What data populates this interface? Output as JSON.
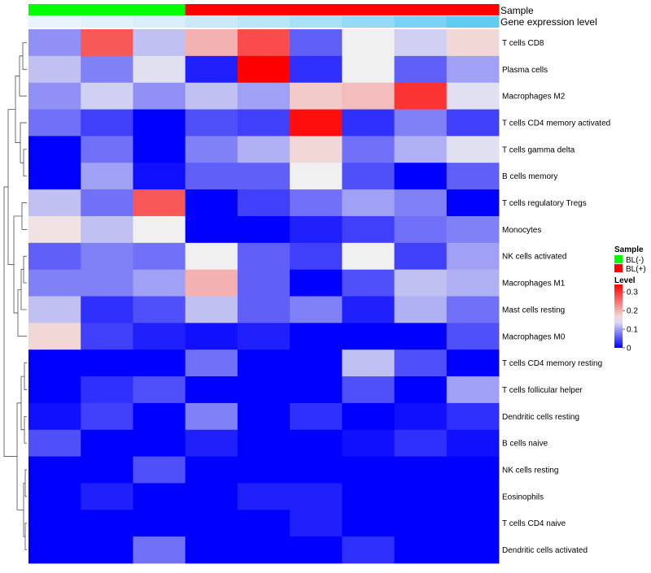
{
  "chart_data": {
    "type": "heatmap",
    "annotation_tracks": [
      "Sample",
      "Gene expression level"
    ],
    "samples": [
      "BL(-)",
      "BL(-)",
      "BL(-)",
      "BL(+)",
      "BL(+)",
      "BL(+)",
      "BL(+)",
      "BL(+)",
      "BL(+)"
    ],
    "gene_expression_level": [
      0.0,
      0.05,
      0.1,
      0.2,
      0.3,
      0.42,
      0.55,
      0.7,
      0.85
    ],
    "rows": [
      "T cells CD8",
      "Plasma cells",
      "Macrophages M2",
      "T cells CD4 memory activated",
      "T cells gamma delta",
      "B cells memory",
      "T cells regulatory  Tregs",
      "Monocytes",
      "NK cells activated",
      "Macrophages M1",
      "Mast cells resting",
      "Macrophages M0",
      "T cells CD4 memory resting",
      "T cells follicular helper",
      "Dendritic cells resting",
      "B cells naive",
      "NK cells resting",
      "Eosinophils",
      "T cells CD4 naive",
      "Dendritic cells activated"
    ],
    "values": [
      [
        0.09,
        0.27,
        0.12,
        0.2,
        0.28,
        0.06,
        0.15,
        0.13,
        0.17
      ],
      [
        0.12,
        0.08,
        0.14,
        0.02,
        0.34,
        0.03,
        0.15,
        0.06,
        0.1
      ],
      [
        0.09,
        0.13,
        0.09,
        0.12,
        0.1,
        0.18,
        0.19,
        0.3,
        0.14
      ],
      [
        0.07,
        0.04,
        0.0,
        0.05,
        0.04,
        0.33,
        0.03,
        0.08,
        0.04
      ],
      [
        0.0,
        0.07,
        0.0,
        0.08,
        0.11,
        0.17,
        0.07,
        0.11,
        0.14
      ],
      [
        0.0,
        0.1,
        0.01,
        0.06,
        0.06,
        0.15,
        0.05,
        0.0,
        0.06
      ],
      [
        0.12,
        0.07,
        0.27,
        0.0,
        0.04,
        0.07,
        0.1,
        0.08,
        0.0
      ],
      [
        0.16,
        0.12,
        0.15,
        0.0,
        0.0,
        0.02,
        0.04,
        0.07,
        0.08
      ],
      [
        0.06,
        0.08,
        0.07,
        0.15,
        0.06,
        0.04,
        0.15,
        0.04,
        0.1
      ],
      [
        0.08,
        0.08,
        0.1,
        0.2,
        0.06,
        0.0,
        0.05,
        0.12,
        0.11
      ],
      [
        0.12,
        0.03,
        0.05,
        0.12,
        0.06,
        0.08,
        0.02,
        0.11,
        0.07
      ],
      [
        0.17,
        0.04,
        0.02,
        0.01,
        0.02,
        0.0,
        0.0,
        0.0,
        0.05
      ],
      [
        0.0,
        0.0,
        0.0,
        0.07,
        0.0,
        0.0,
        0.12,
        0.05,
        0.0
      ],
      [
        0.0,
        0.03,
        0.05,
        0.0,
        0.0,
        0.0,
        0.05,
        0.0,
        0.1
      ],
      [
        0.01,
        0.04,
        0.0,
        0.08,
        0.0,
        0.03,
        0.0,
        0.01,
        0.03
      ],
      [
        0.05,
        0.0,
        0.0,
        0.02,
        0.0,
        0.0,
        0.01,
        0.03,
        0.01
      ],
      [
        0.0,
        0.0,
        0.05,
        0.0,
        0.0,
        0.0,
        0.0,
        0.0,
        0.0
      ],
      [
        0.0,
        0.02,
        0.0,
        0.0,
        0.02,
        0.02,
        0.0,
        0.0,
        0.0
      ],
      [
        0.0,
        0.0,
        0.0,
        0.0,
        0.0,
        0.02,
        0.0,
        0.0,
        0.0
      ],
      [
        0.0,
        0.0,
        0.07,
        0.0,
        0.0,
        0.0,
        0.03,
        0.0,
        0.0
      ]
    ],
    "color_scale": {
      "min": 0,
      "mid": 0.15,
      "max": 0.34,
      "low": "#0000FF",
      "midColor": "#F0F0F0",
      "high": "#FF0000"
    },
    "sample_colors": {
      "BL(-)": "#00FF00",
      "BL(+)": "#FF0000"
    },
    "legend": {
      "sample_title": "Sample",
      "sample_entries": [
        "BL(-)",
        "BL(+)"
      ],
      "level_title": "Level",
      "level_ticks": [
        {
          "value": 0.3,
          "label": "0.3"
        },
        {
          "value": 0.2,
          "label": "0.2"
        },
        {
          "value": 0.1,
          "label": "0.1"
        },
        {
          "value": 0,
          "label": "0"
        }
      ],
      "level_range": [
        0,
        0.34
      ]
    },
    "row_dendrogram": true
  }
}
